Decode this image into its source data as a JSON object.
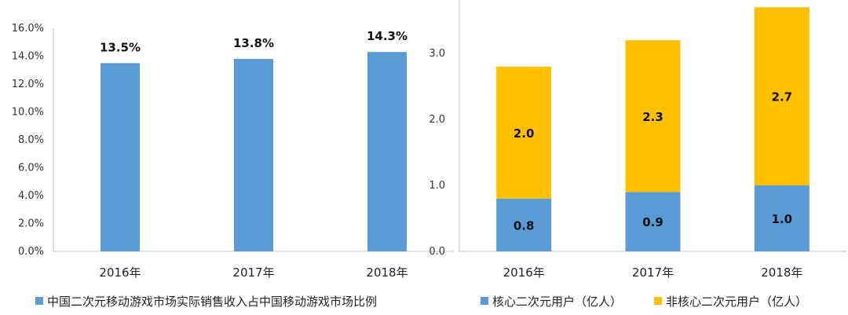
{
  "chart_data": [
    {
      "type": "bar",
      "categories": [
        "2016年",
        "2017年",
        "2018年"
      ],
      "series": [
        {
          "name": "中国二次元移动游戏市场实际销售收入占中国移动游戏市场比例",
          "values": [
            13.5,
            13.8,
            14.3
          ],
          "labels": [
            "13.5%",
            "13.8%",
            "14.3%"
          ],
          "color": "#5B9BD5"
        }
      ],
      "ylim": [
        0,
        16
      ],
      "yticks": [
        "0.0%",
        "2.0%",
        "4.0%",
        "6.0%",
        "8.0%",
        "10.0%",
        "12.0%",
        "14.0%",
        "16.0%"
      ],
      "grid": false,
      "legend": "bottom"
    },
    {
      "type": "bar",
      "stacked": true,
      "categories": [
        "2016年",
        "2017年",
        "2018年"
      ],
      "series": [
        {
          "name": "核心二次元用户（亿人）",
          "values": [
            0.8,
            0.9,
            1.0
          ],
          "labels": [
            "0.8",
            "0.9",
            "1.0"
          ],
          "color": "#5B9BD5"
        },
        {
          "name": "非核心二次元用户（亿人）",
          "values": [
            2.0,
            2.3,
            2.7
          ],
          "labels": [
            "2.0",
            "2.3",
            "2.7"
          ],
          "color": "#FFC000"
        }
      ],
      "ylim": [
        0,
        3.8
      ],
      "yticks": [
        "0.0",
        "1.0",
        "2.0",
        "3.0"
      ],
      "grid": false,
      "legend": "bottom"
    }
  ]
}
